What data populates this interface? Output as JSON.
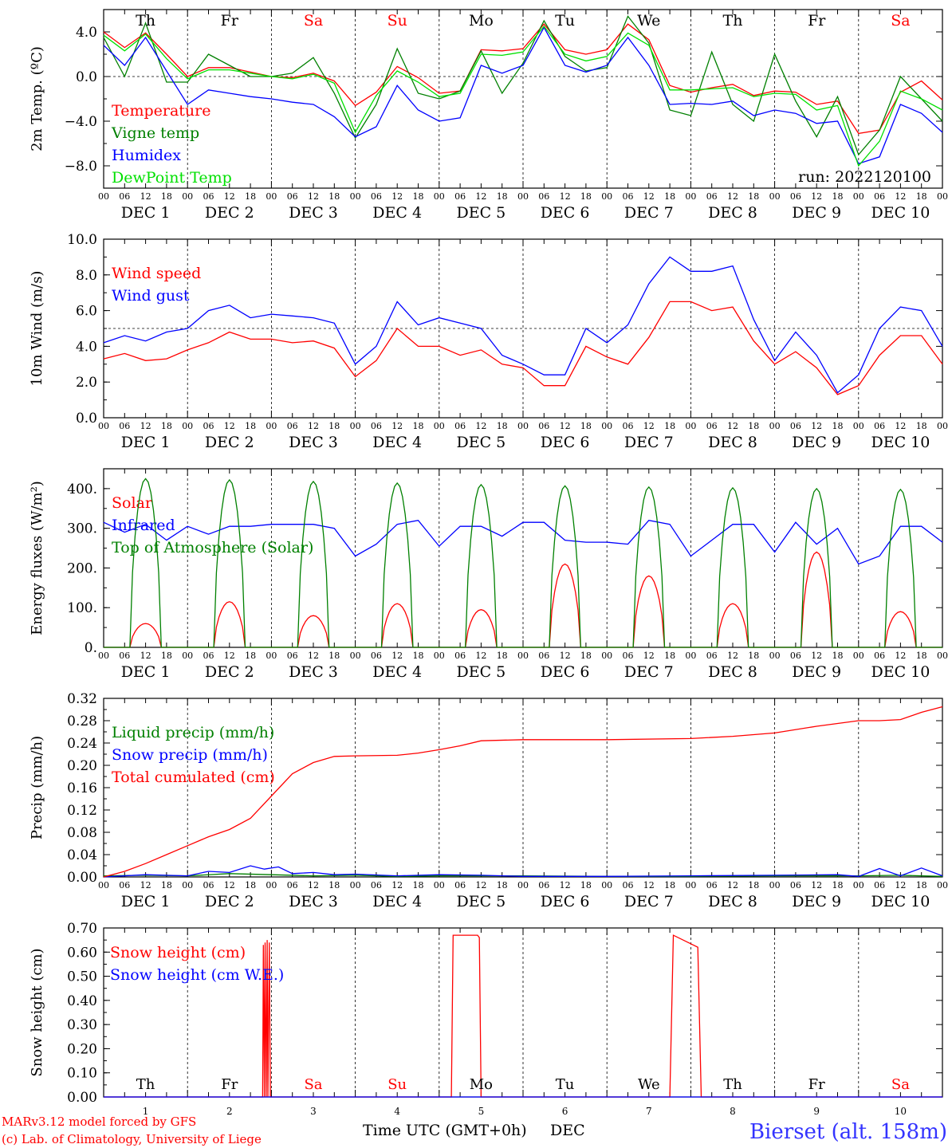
{
  "run_label": "run: 2022120100",
  "footer": {
    "model": "MARv3.12 model forced by GFS",
    "copyright": "(c) Lab. of Climatology, University of Liege",
    "station": "Bierset (alt. 158m)",
    "time_axis_label": "Time UTC (GMT+0h)",
    "month": "DEC"
  },
  "days": [
    {
      "weekday": "Th",
      "date": "1",
      "weekend": false
    },
    {
      "weekday": "Fr",
      "date": "2",
      "weekend": false
    },
    {
      "weekday": "Sa",
      "date": "3",
      "weekend": true
    },
    {
      "weekday": "Su",
      "date": "4",
      "weekend": true
    },
    {
      "weekday": "Mo",
      "date": "5",
      "weekend": false
    },
    {
      "weekday": "Tu",
      "date": "6",
      "weekend": false
    },
    {
      "weekday": "We",
      "date": "7",
      "weekend": false
    },
    {
      "weekday": "Th",
      "date": "8",
      "weekend": false
    },
    {
      "weekday": "Fr",
      "date": "9",
      "weekend": false
    },
    {
      "weekday": "Sa",
      "date": "10",
      "weekend": true
    }
  ],
  "hour_ticks": [
    "00",
    "06",
    "12",
    "18"
  ],
  "colors": {
    "red": "#ff0000",
    "green": "#008000",
    "blue": "#0000ff",
    "lightgreen": "#00e000",
    "weekend": "#ff0000"
  },
  "chart_data": [
    {
      "type": "line",
      "id": "temp",
      "ylabel": "2m Temp. (ºC)",
      "x_unit": "hours since 00 UTC DEC 1",
      "ylim": [
        -10.0,
        6.0
      ],
      "yticks": [
        4.0,
        0.0,
        -4.0,
        -8.0
      ],
      "ytick_labels": [
        "4.0",
        "0.0",
        "−4.0",
        "−8.0"
      ],
      "hline": 0.0,
      "series": [
        {
          "name": "Temperature",
          "color": "#ff0000",
          "x": [
            0,
            6,
            12,
            18,
            24,
            30,
            36,
            42,
            48,
            54,
            60,
            66,
            72,
            78,
            84,
            90,
            96,
            102,
            108,
            114,
            120,
            126,
            132,
            138,
            144,
            150,
            156,
            162,
            168,
            174,
            180,
            186,
            192,
            198,
            204,
            210,
            216,
            222,
            228,
            234,
            240
          ],
          "y": [
            4.0,
            2.6,
            3.9,
            2.0,
            0.0,
            0.8,
            0.8,
            0.4,
            0.0,
            -0.1,
            0.3,
            -0.4,
            -2.6,
            -1.4,
            0.9,
            -0.1,
            -1.5,
            -1.3,
            2.4,
            2.3,
            2.5,
            4.7,
            2.4,
            2.0,
            2.4,
            4.7,
            3.3,
            -0.8,
            -1.4,
            -1.0,
            -0.7,
            -1.7,
            -1.3,
            -1.4,
            -2.5,
            -2.2,
            -5.1,
            -4.8,
            -1.4,
            -0.4,
            -2.1
          ]
        },
        {
          "name": "Vigne temp",
          "color": "#008000",
          "x": [
            0,
            6,
            12,
            18,
            24,
            30,
            36,
            42,
            48,
            54,
            60,
            66,
            72,
            78,
            84,
            90,
            96,
            102,
            108,
            114,
            120,
            126,
            132,
            138,
            144,
            150,
            156,
            162,
            168,
            174,
            180,
            186,
            192,
            198,
            204,
            210,
            216,
            222,
            228,
            234,
            240
          ],
          "y": [
            3.5,
            0.0,
            4.8,
            -0.5,
            -0.5,
            2.0,
            1.0,
            0.0,
            0.0,
            0.3,
            1.7,
            -1.5,
            -5.5,
            -2.5,
            2.5,
            -1.5,
            -2.0,
            -1.3,
            2.3,
            -1.5,
            1.2,
            5.0,
            1.8,
            0.5,
            0.8,
            5.4,
            3.0,
            -3.0,
            -3.5,
            2.2,
            -2.5,
            -4.0,
            2.0,
            -2.2,
            -5.4,
            -1.8,
            -7.0,
            -4.8,
            0.0,
            -2.0,
            -4.0
          ]
        },
        {
          "name": "Humidex",
          "color": "#0000ff",
          "x": [
            0,
            6,
            12,
            18,
            24,
            30,
            36,
            42,
            48,
            54,
            60,
            66,
            72,
            78,
            84,
            90,
            96,
            102,
            108,
            114,
            120,
            126,
            132,
            138,
            144,
            150,
            156,
            162,
            168,
            174,
            180,
            186,
            192,
            198,
            204,
            210,
            216,
            222,
            228,
            234,
            240
          ],
          "y": [
            2.8,
            1.0,
            3.5,
            0.5,
            -2.5,
            -1.2,
            -1.5,
            -1.8,
            -2.0,
            -2.3,
            -2.5,
            -3.6,
            -5.4,
            -4.5,
            -0.8,
            -3.0,
            -4.0,
            -3.7,
            1.0,
            0.3,
            1.0,
            4.4,
            1.0,
            0.4,
            1.0,
            3.5,
            1.0,
            -2.5,
            -2.4,
            -2.5,
            -2.2,
            -3.5,
            -3.0,
            -3.3,
            -4.2,
            -4.0,
            -7.8,
            -7.2,
            -2.5,
            -3.3,
            -5.0
          ]
        },
        {
          "name": "DewPoint Temp",
          "color": "#00e000",
          "x": [
            0,
            6,
            12,
            18,
            24,
            30,
            36,
            42,
            48,
            54,
            60,
            66,
            72,
            78,
            84,
            90,
            96,
            102,
            108,
            114,
            120,
            126,
            132,
            138,
            144,
            150,
            156,
            162,
            168,
            174,
            180,
            186,
            192,
            198,
            204,
            210,
            216,
            222,
            228,
            234,
            240
          ],
          "y": [
            3.7,
            2.3,
            3.8,
            1.6,
            -0.2,
            0.6,
            0.6,
            0.3,
            0.0,
            -0.2,
            0.2,
            -0.6,
            -5.0,
            -1.7,
            0.5,
            -0.5,
            -1.8,
            -1.5,
            2.0,
            1.9,
            2.2,
            4.5,
            2.0,
            1.4,
            1.8,
            3.9,
            2.8,
            -1.2,
            -1.2,
            -1.1,
            -1.0,
            -1.8,
            -1.5,
            -1.6,
            -3.0,
            -2.6,
            -8.0,
            -5.8,
            -1.3,
            -2.0,
            -3.0
          ]
        }
      ]
    },
    {
      "type": "line",
      "id": "wind",
      "ylabel": "10m Wind (m/s)",
      "ylim": [
        0.0,
        10.0
      ],
      "yticks": [
        0.0,
        2.0,
        4.0,
        6.0,
        8.0,
        10.0
      ],
      "ytick_labels": [
        "0.0",
        "2.0",
        "4.0",
        "6.0",
        "8.0",
        "10.0"
      ],
      "hline": 5.0,
      "series": [
        {
          "name": "Wind speed",
          "color": "#ff0000",
          "x": [
            0,
            6,
            12,
            18,
            24,
            30,
            36,
            42,
            48,
            54,
            60,
            66,
            72,
            78,
            84,
            90,
            96,
            102,
            108,
            114,
            120,
            126,
            132,
            138,
            144,
            150,
            156,
            162,
            168,
            174,
            180,
            186,
            192,
            198,
            204,
            210,
            216,
            222,
            228,
            234,
            240
          ],
          "y": [
            3.3,
            3.6,
            3.2,
            3.3,
            3.8,
            4.2,
            4.8,
            4.4,
            4.4,
            4.2,
            4.3,
            3.9,
            2.3,
            3.2,
            5.0,
            4.0,
            4.0,
            3.5,
            3.8,
            3.0,
            2.8,
            1.8,
            1.8,
            4.0,
            3.4,
            3.0,
            4.5,
            6.5,
            6.5,
            6.0,
            6.2,
            4.3,
            3.0,
            3.7,
            2.8,
            1.3,
            1.8,
            3.5,
            4.6,
            4.6,
            3.0
          ]
        },
        {
          "name": "Wind gust",
          "color": "#0000ff",
          "x": [
            0,
            6,
            12,
            18,
            24,
            30,
            36,
            42,
            48,
            54,
            60,
            66,
            72,
            78,
            84,
            90,
            96,
            102,
            108,
            114,
            120,
            126,
            132,
            138,
            144,
            150,
            156,
            162,
            168,
            174,
            180,
            186,
            192,
            198,
            204,
            210,
            216,
            222,
            228,
            234,
            240
          ],
          "y": [
            4.2,
            4.6,
            4.3,
            4.8,
            5.0,
            6.0,
            6.3,
            5.6,
            5.8,
            5.7,
            5.6,
            5.3,
            3.0,
            4.0,
            6.5,
            5.2,
            5.6,
            5.3,
            5.0,
            3.5,
            3.0,
            2.4,
            2.4,
            5.0,
            4.2,
            5.2,
            7.5,
            9.0,
            8.2,
            8.2,
            8.5,
            5.5,
            3.2,
            4.8,
            3.5,
            1.4,
            2.4,
            5.0,
            6.2,
            6.0,
            4.0
          ]
        }
      ]
    },
    {
      "type": "line",
      "id": "energy",
      "ylabel": "Energy fluxes (W/m²)",
      "ylim": [
        0,
        450
      ],
      "yticks": [
        0,
        100,
        200,
        300,
        400
      ],
      "ytick_labels": [
        "0.",
        "100.",
        "200.",
        "300.",
        "400."
      ],
      "series": [
        {
          "name": "Solar",
          "color": "#ff0000",
          "peaks": [
            {
              "x": 12,
              "y": 60
            },
            {
              "x": 36,
              "y": 115
            },
            {
              "x": 60,
              "y": 80
            },
            {
              "x": 84,
              "y": 110
            },
            {
              "x": 108,
              "y": 95
            },
            {
              "x": 132,
              "y": 210
            },
            {
              "x": 156,
              "y": 180
            },
            {
              "x": 180,
              "y": 110
            },
            {
              "x": 204,
              "y": 240
            },
            {
              "x": 228,
              "y": 90
            }
          ]
        },
        {
          "name": "Infrared",
          "color": "#0000ff",
          "x": [
            0,
            6,
            12,
            18,
            24,
            30,
            36,
            42,
            48,
            54,
            60,
            66,
            72,
            78,
            84,
            90,
            96,
            102,
            108,
            114,
            120,
            126,
            132,
            138,
            144,
            150,
            156,
            162,
            168,
            174,
            180,
            186,
            192,
            198,
            204,
            210,
            216,
            222,
            228,
            234,
            240
          ],
          "y": [
            315,
            290,
            310,
            270,
            305,
            285,
            305,
            305,
            310,
            310,
            310,
            300,
            230,
            260,
            310,
            320,
            255,
            305,
            305,
            280,
            315,
            315,
            270,
            265,
            265,
            260,
            320,
            310,
            230,
            270,
            310,
            310,
            240,
            315,
            260,
            300,
            210,
            230,
            305,
            305,
            265
          ]
        },
        {
          "name": "Top of Atmosphere (Solar)",
          "color": "#008000",
          "peaks": [
            {
              "x": 12,
              "y": 425
            },
            {
              "x": 36,
              "y": 422
            },
            {
              "x": 60,
              "y": 418
            },
            {
              "x": 84,
              "y": 414
            },
            {
              "x": 108,
              "y": 410
            },
            {
              "x": 132,
              "y": 407
            },
            {
              "x": 156,
              "y": 404
            },
            {
              "x": 180,
              "y": 402
            },
            {
              "x": 204,
              "y": 400
            },
            {
              "x": 228,
              "y": 398
            }
          ],
          "daylight_hours": [
            7.5,
            16.5
          ]
        }
      ]
    },
    {
      "type": "line",
      "id": "precip",
      "ylabel": "Precip (mm/h)",
      "ylim": [
        0.0,
        0.32
      ],
      "yticks": [
        0.0,
        0.04,
        0.08,
        0.12,
        0.16,
        0.2,
        0.24,
        0.28,
        0.32
      ],
      "ytick_labels": [
        "0.00",
        "0.04",
        "0.08",
        "0.12",
        "0.16",
        "0.20",
        "0.24",
        "0.28",
        "0.32"
      ],
      "series": [
        {
          "name": "Liquid precip (mm/h)",
          "color": "#008000",
          "x": [
            0,
            12,
            24,
            36,
            48,
            60,
            72,
            84,
            96,
            120,
            144,
            168,
            192,
            216,
            228,
            240
          ],
          "y": [
            0.002,
            0.003,
            0.002,
            0.006,
            0.004,
            0.002,
            0.003,
            0.001,
            0.002,
            0.002,
            0.001,
            0.001,
            0.002,
            0.002,
            0.003,
            0.001
          ]
        },
        {
          "name": "Snow precip (mm/h)",
          "color": "#0000ff",
          "x": [
            0,
            12,
            24,
            30,
            36,
            42,
            46,
            50,
            54,
            60,
            66,
            72,
            84,
            96,
            108,
            120,
            144,
            168,
            192,
            210,
            216,
            222,
            228,
            234,
            240
          ],
          "y": [
            0.0,
            0.004,
            0.002,
            0.01,
            0.008,
            0.02,
            0.014,
            0.018,
            0.006,
            0.008,
            0.004,
            0.005,
            0.002,
            0.004,
            0.003,
            0.001,
            0.001,
            0.002,
            0.003,
            0.004,
            0.001,
            0.015,
            0.002,
            0.016,
            0.002
          ]
        },
        {
          "name": "Total cumulated (cm)",
          "color": "#ff0000",
          "x": [
            0,
            6,
            12,
            18,
            24,
            30,
            36,
            42,
            48,
            54,
            60,
            66,
            72,
            84,
            90,
            96,
            102,
            108,
            120,
            144,
            168,
            180,
            192,
            204,
            216,
            222,
            228,
            234,
            240
          ],
          "y": [
            0.0,
            0.01,
            0.024,
            0.04,
            0.056,
            0.072,
            0.085,
            0.105,
            0.145,
            0.185,
            0.205,
            0.216,
            0.217,
            0.218,
            0.222,
            0.228,
            0.235,
            0.244,
            0.246,
            0.246,
            0.248,
            0.252,
            0.258,
            0.27,
            0.28,
            0.28,
            0.282,
            0.295,
            0.305
          ]
        }
      ]
    },
    {
      "type": "line",
      "id": "snow",
      "ylabel": "Snow height (cm)",
      "ylim": [
        0.0,
        0.7
      ],
      "yticks": [
        0.0,
        0.1,
        0.2,
        0.3,
        0.4,
        0.5,
        0.6,
        0.7
      ],
      "ytick_labels": [
        "0.00",
        "0.10",
        "0.20",
        "0.30",
        "0.40",
        "0.50",
        "0.60",
        "0.70"
      ],
      "series": [
        {
          "name": "Snow height (cm)",
          "color": "#ff0000",
          "x": [
            0,
            45.5,
            45.7,
            46.0,
            46.2,
            46.5,
            46.8,
            47.0,
            47.4,
            47.7,
            48,
            99.5,
            100,
            107,
            107.5,
            108,
            108.5,
            162,
            163,
            170,
            171,
            240
          ],
          "y": [
            0,
            0,
            0.63,
            0,
            0.64,
            0,
            0.65,
            0,
            0.64,
            0,
            0,
            0,
            0.67,
            0.67,
            0.66,
            0,
            0,
            0,
            0.67,
            0.62,
            0,
            0
          ]
        },
        {
          "name": "Snow height (cm W.E.)",
          "color": "#0000ff",
          "x": [
            0,
            240
          ],
          "y": [
            0,
            0
          ]
        }
      ]
    }
  ]
}
